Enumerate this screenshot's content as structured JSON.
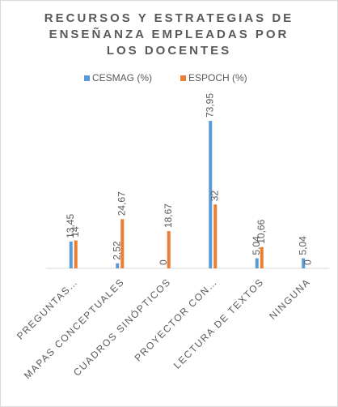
{
  "chart_data": {
    "type": "bar",
    "title": "RECURSOS Y ESTRATEGIAS DE ENSEÑANZA EMPLEADAS POR LOS DOCENTES",
    "categories": [
      "PREGUNTAS…",
      "MAPAS CONCEPTUALES",
      "CUADROS SINÓPTICOS",
      "PROYECTOR CON…",
      "LECTURA DE TEXTOS",
      "NINGUNA"
    ],
    "series": [
      {
        "name": "CESMAG (%)",
        "color": "#5b9bd5",
        "values": [
          13.45,
          2.52,
          0,
          73.95,
          5.04,
          5.04
        ],
        "value_labels": [
          "13,45",
          "2,52",
          "0",
          "73,95",
          "5,04",
          "5,04"
        ]
      },
      {
        "name": "ESPOCH (%)",
        "color": "#ed7d31",
        "values": [
          14,
          24.67,
          18.67,
          32,
          10.66,
          0
        ],
        "value_labels": [
          "14",
          "24,67",
          "18,67",
          "32",
          "10,66",
          "0"
        ]
      }
    ],
    "legend": "top",
    "grid": false
  }
}
